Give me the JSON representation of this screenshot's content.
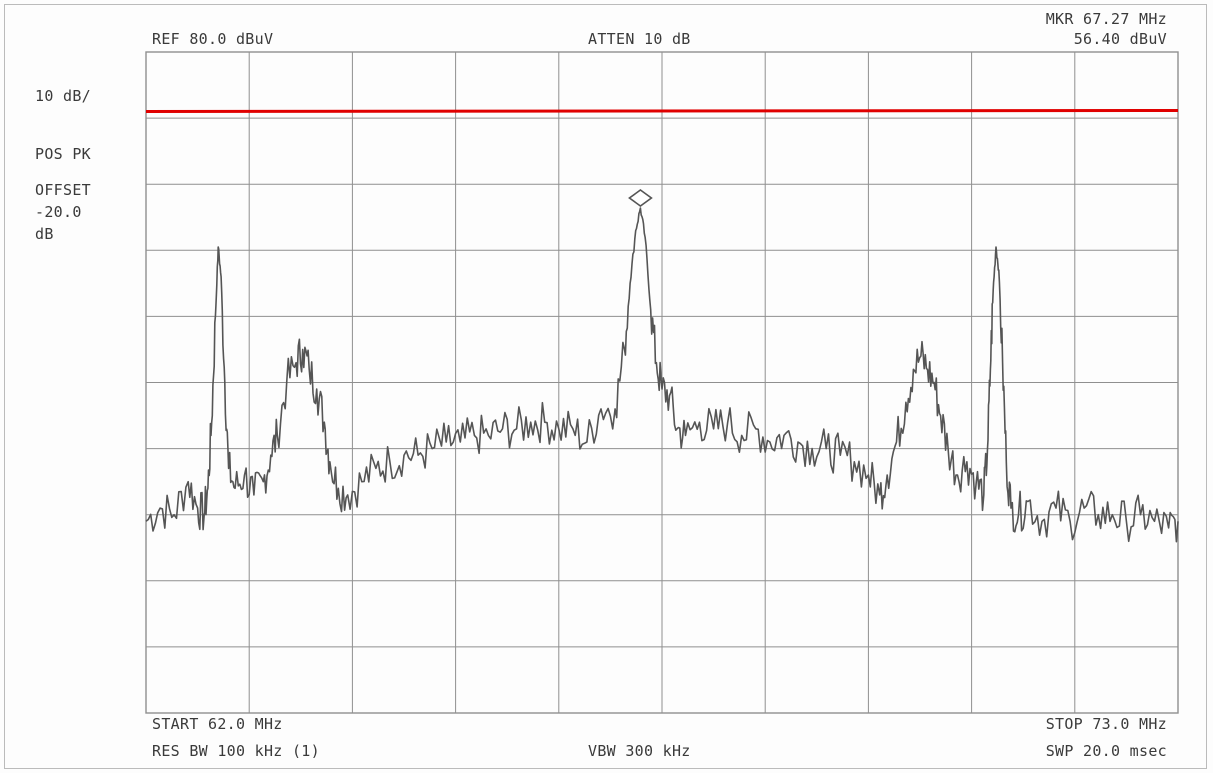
{
  "header": {
    "ref": "REF  80.0 dBuV",
    "atten": "ATTEN 10 dB",
    "marker_freq": "MKR 67.27 MHz",
    "marker_level": "56.40 dBuV"
  },
  "left_panel": {
    "scale": "10 dB/",
    "detector": "POS PK",
    "offset_label": "OFFSET",
    "offset_value": "-20.0",
    "offset_unit": "dB"
  },
  "footer": {
    "start": "START 62.0 MHz",
    "stop": "STOP 73.0 MHz",
    "res_bw": "RES BW 100 kHz (1)",
    "vbw": "VBW 300 kHz",
    "sweep": "SWP 20.0 msec"
  },
  "colors": {
    "trace": "#555555",
    "grid": "#8f8f8f",
    "limit_line": "#e00000",
    "text": "#3a3a3a"
  },
  "chart_data": {
    "type": "line",
    "x_unit": "MHz",
    "y_unit": "dBuV",
    "xlim": [
      62.0,
      73.0
    ],
    "ylim": [
      -20.0,
      80.0
    ],
    "grid": true,
    "grid_divisions": {
      "x": 10,
      "y": 10
    },
    "limit_line": {
      "y": 71.0,
      "color": "#e00000"
    },
    "marker": {
      "x": 67.27,
      "y": 56.4,
      "shape": "diamond"
    },
    "series": [
      {
        "points": [
          [
            62.0,
            9.0
          ],
          [
            62.15,
            11.0
          ],
          [
            62.3,
            10.0
          ],
          [
            62.45,
            15.0
          ],
          [
            62.55,
            11.0
          ],
          [
            62.62,
            10.0
          ],
          [
            62.66,
            14.0
          ],
          [
            62.7,
            24.0
          ],
          [
            62.74,
            40.0
          ],
          [
            62.77,
            50.5
          ],
          [
            62.8,
            46.0
          ],
          [
            62.84,
            30.0
          ],
          [
            62.88,
            17.0
          ],
          [
            62.95,
            14.0
          ],
          [
            63.05,
            16.0
          ],
          [
            63.15,
            13.0
          ],
          [
            63.25,
            15.0
          ],
          [
            63.33,
            19.0
          ],
          [
            63.4,
            22.0
          ],
          [
            63.5,
            30.0
          ],
          [
            63.6,
            33.0
          ],
          [
            63.67,
            35.0
          ],
          [
            63.74,
            32.0
          ],
          [
            63.82,
            29.0
          ],
          [
            63.9,
            24.0
          ],
          [
            63.96,
            18.0
          ],
          [
            64.05,
            14.0
          ],
          [
            64.15,
            13.0
          ],
          [
            64.3,
            15.0
          ],
          [
            64.45,
            17.0
          ],
          [
            64.6,
            18.0
          ],
          [
            64.75,
            19.0
          ],
          [
            64.9,
            19.0
          ],
          [
            65.05,
            20.0
          ],
          [
            65.2,
            21.0
          ],
          [
            65.35,
            21.0
          ],
          [
            65.5,
            22.0
          ],
          [
            65.65,
            22.0
          ],
          [
            65.8,
            23.0
          ],
          [
            65.95,
            23.0
          ],
          [
            66.1,
            24.0
          ],
          [
            66.25,
            24.0
          ],
          [
            66.4,
            23.0
          ],
          [
            66.55,
            23.0
          ],
          [
            66.7,
            21.0
          ],
          [
            66.85,
            26.0
          ],
          [
            67.0,
            26.0
          ],
          [
            67.1,
            35.0
          ],
          [
            67.16,
            45.0
          ],
          [
            67.22,
            53.0
          ],
          [
            67.27,
            56.4
          ],
          [
            67.32,
            52.0
          ],
          [
            67.38,
            41.0
          ],
          [
            67.44,
            33.0
          ],
          [
            67.5,
            29.0
          ],
          [
            67.58,
            28.0
          ],
          [
            67.66,
            23.0
          ],
          [
            67.75,
            22.0
          ],
          [
            67.9,
            24.0
          ],
          [
            68.05,
            23.0
          ],
          [
            68.2,
            24.0
          ],
          [
            68.35,
            22.0
          ],
          [
            68.5,
            23.0
          ],
          [
            68.65,
            21.0
          ],
          [
            68.8,
            22.0
          ],
          [
            68.95,
            21.0
          ],
          [
            69.1,
            20.0
          ],
          [
            69.25,
            20.0
          ],
          [
            69.4,
            19.0
          ],
          [
            69.55,
            18.0
          ],
          [
            69.7,
            16.0
          ],
          [
            69.82,
            13.0
          ],
          [
            69.9,
            16.0
          ],
          [
            70.0,
            21.0
          ],
          [
            70.1,
            27.0
          ],
          [
            70.18,
            32.0
          ],
          [
            70.26,
            34.0
          ],
          [
            70.33,
            32.0
          ],
          [
            70.4,
            30.0
          ],
          [
            70.47,
            25.0
          ],
          [
            70.55,
            20.0
          ],
          [
            70.65,
            16.0
          ],
          [
            70.75,
            18.0
          ],
          [
            70.85,
            15.0
          ],
          [
            70.93,
            13.0
          ],
          [
            70.97,
            20.0
          ],
          [
            71.0,
            32.0
          ],
          [
            71.03,
            44.0
          ],
          [
            71.06,
            50.5
          ],
          [
            71.09,
            47.0
          ],
          [
            71.13,
            33.0
          ],
          [
            71.17,
            18.0
          ],
          [
            71.22,
            11.0
          ],
          [
            71.3,
            10.0
          ],
          [
            71.4,
            12.0
          ],
          [
            71.55,
            9.0
          ],
          [
            71.7,
            11.0
          ],
          [
            71.85,
            9.0
          ],
          [
            72.0,
            11.0
          ],
          [
            72.15,
            10.0
          ],
          [
            72.3,
            10.0
          ],
          [
            72.45,
            9.0
          ],
          [
            72.6,
            10.0
          ],
          [
            72.75,
            9.0
          ],
          [
            72.9,
            8.0
          ],
          [
            73.0,
            9.0
          ]
        ]
      }
    ]
  }
}
